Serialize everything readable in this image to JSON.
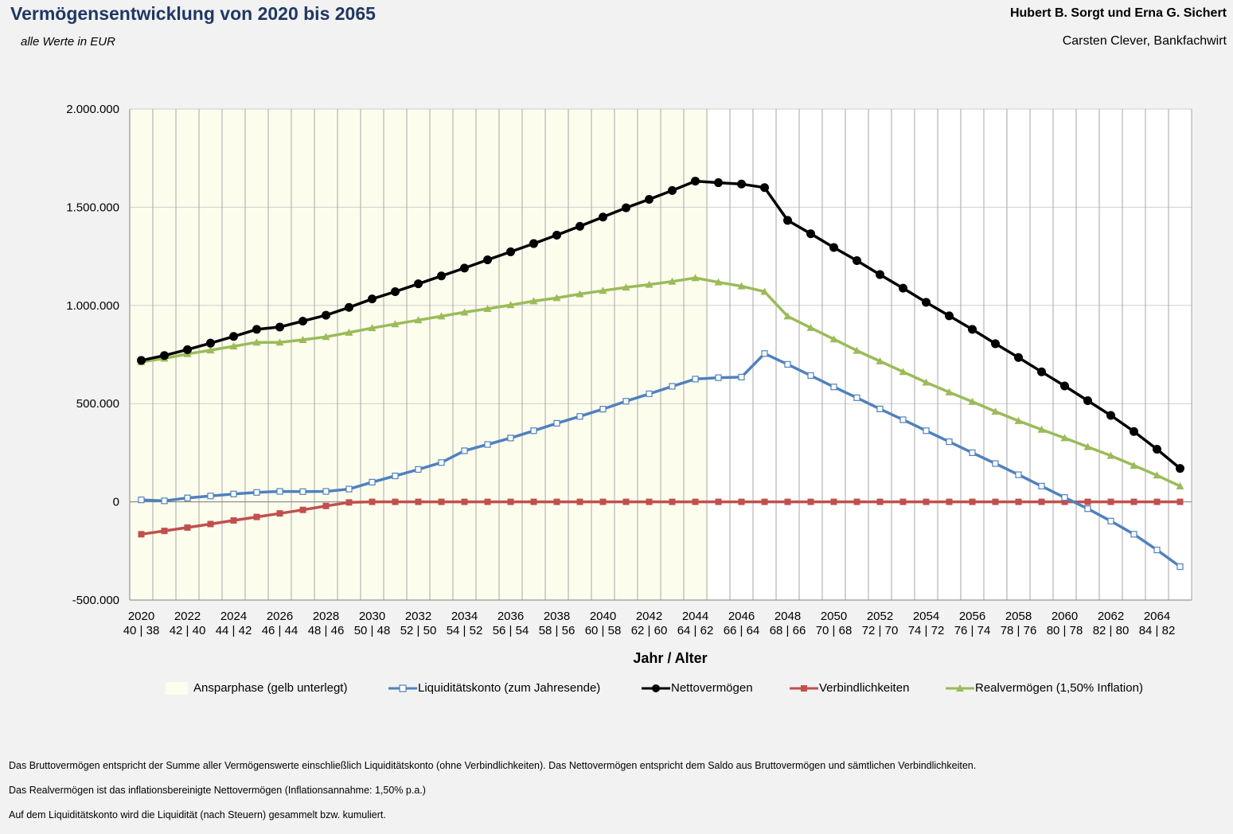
{
  "header": {
    "title": "Vermögensentwicklung von 2020 bis 2065",
    "subtitle": "alle Werte in EUR",
    "clients": "Hubert B. Sorgt und Erna G. Sichert",
    "advisor": "Carsten Clever, Bankfachwirt"
  },
  "colors": {
    "ansparphase": "#fdfdee",
    "liquiditaet": "#4f81bd",
    "netto": "#000000",
    "verbindlichkeiten": "#c0504d",
    "real": "#9bbb59"
  },
  "chart_data": {
    "type": "line",
    "xlabel": "Jahr / Alter",
    "ylim": [
      -500000,
      2000000
    ],
    "y_ticks": [
      "2.000.000",
      "1.500.000",
      "1.000.000",
      "500.000",
      "0",
      "-500.000"
    ],
    "y_tick_values": [
      2000000,
      1500000,
      1000000,
      500000,
      0,
      -500000
    ],
    "x": [
      2020,
      2021,
      2022,
      2023,
      2024,
      2025,
      2026,
      2027,
      2028,
      2029,
      2030,
      2031,
      2032,
      2033,
      2034,
      2035,
      2036,
      2037,
      2038,
      2039,
      2040,
      2041,
      2042,
      2043,
      2044,
      2045,
      2046,
      2047,
      2048,
      2049,
      2050,
      2051,
      2052,
      2053,
      2054,
      2055,
      2056,
      2057,
      2058,
      2059,
      2060,
      2061,
      2062,
      2063,
      2064,
      2065
    ],
    "x_tick_labels": [
      {
        "year": "2020",
        "age": "40 | 38"
      },
      {
        "year": "2022",
        "age": "42 | 40"
      },
      {
        "year": "2024",
        "age": "44 | 42"
      },
      {
        "year": "2026",
        "age": "46 | 44"
      },
      {
        "year": "2028",
        "age": "48 | 46"
      },
      {
        "year": "2030",
        "age": "50 | 48"
      },
      {
        "year": "2032",
        "age": "52 | 50"
      },
      {
        "year": "2034",
        "age": "54 | 52"
      },
      {
        "year": "2036",
        "age": "56 | 54"
      },
      {
        "year": "2038",
        "age": "58 | 56"
      },
      {
        "year": "2040",
        "age": "60 | 58"
      },
      {
        "year": "2042",
        "age": "62 | 60"
      },
      {
        "year": "2044",
        "age": "64 | 62"
      },
      {
        "year": "2046",
        "age": "66 | 64"
      },
      {
        "year": "2048",
        "age": "68 | 66"
      },
      {
        "year": "2050",
        "age": "70 | 68"
      },
      {
        "year": "2052",
        "age": "72 | 70"
      },
      {
        "year": "2054",
        "age": "74 | 72"
      },
      {
        "year": "2056",
        "age": "76 | 74"
      },
      {
        "year": "2058",
        "age": "78 | 76"
      },
      {
        "year": "2060",
        "age": "80 | 78"
      },
      {
        "year": "2062",
        "age": "82 | 80"
      },
      {
        "year": "2064",
        "age": "84 | 82"
      }
    ],
    "ansparphase": {
      "name": "Ansparphase (gelb unterlegt)",
      "from": 2020,
      "to": 2044
    },
    "series": [
      {
        "key": "liquiditaet",
        "name": "Liquiditätskonto (zum Jahresende)",
        "marker": "square-open",
        "values": [
          10000,
          5000,
          20000,
          30000,
          40000,
          48000,
          53000,
          52000,
          53000,
          65000,
          100000,
          132000,
          165000,
          200000,
          260000,
          292000,
          325000,
          362000,
          400000,
          435000,
          472000,
          512000,
          550000,
          588000,
          625000,
          632000,
          635000,
          755000,
          700000,
          643000,
          585000,
          530000,
          473000,
          418000,
          362000,
          306000,
          250000,
          195000,
          138000,
          80000,
          22000,
          -35000,
          -98000,
          -165000,
          -245000,
          -330000
        ]
      },
      {
        "key": "netto",
        "name": "Nettovermögen",
        "marker": "circle",
        "values": [
          720000,
          745000,
          775000,
          808000,
          842000,
          878000,
          890000,
          920000,
          950000,
          990000,
          1033000,
          1070000,
          1110000,
          1150000,
          1190000,
          1232000,
          1273000,
          1315000,
          1358000,
          1403000,
          1450000,
          1497000,
          1540000,
          1585000,
          1633000,
          1625000,
          1618000,
          1600000,
          1433000,
          1365000,
          1295000,
          1228000,
          1157000,
          1088000,
          1016000,
          947000,
          878000,
          805000,
          735000,
          662000,
          590000,
          515000,
          440000,
          358000,
          268000,
          170000
        ]
      },
      {
        "key": "verbindlichkeiten",
        "name": "Verbindlichkeiten",
        "marker": "square",
        "values": [
          -165000,
          -148000,
          -131000,
          -113000,
          -95000,
          -77000,
          -59000,
          -41000,
          -21000,
          -3000,
          0,
          0,
          0,
          0,
          0,
          0,
          0,
          0,
          0,
          0,
          0,
          0,
          0,
          0,
          0,
          0,
          0,
          0,
          0,
          0,
          0,
          0,
          0,
          0,
          0,
          0,
          0,
          0,
          0,
          0,
          0,
          0,
          0,
          0,
          0,
          0
        ]
      },
      {
        "key": "real",
        "name": "Realvermögen  (1,50% Inflation)",
        "marker": "triangle",
        "values": [
          712000,
          730000,
          753000,
          772000,
          792000,
          812000,
          812000,
          825000,
          840000,
          862000,
          885000,
          905000,
          925000,
          945000,
          965000,
          983000,
          1002000,
          1022000,
          1038000,
          1058000,
          1075000,
          1092000,
          1106000,
          1122000,
          1140000,
          1118000,
          1098000,
          1070000,
          945000,
          886000,
          828000,
          770000,
          716000,
          662000,
          608000,
          558000,
          510000,
          460000,
          412000,
          368000,
          325000,
          280000,
          235000,
          185000,
          135000,
          80000
        ]
      }
    ]
  },
  "notes": [
    "Das Bruttovermögen entspricht der Summe aller Vermögenswerte einschließlich Liquiditätskonto (ohne Verbindlichkeiten). Das Nettovermögen entspricht dem Saldo aus Bruttovermögen und sämtlichen Verbindlichkeiten.",
    "Das Realvermögen ist das inflationsbereinigte Nettovermögen  (Inflationsannahme: 1,50% p.a.)",
    "Auf dem Liquiditätskonto wird die Liquidität (nach Steuern) gesammelt bzw. kumuliert."
  ]
}
